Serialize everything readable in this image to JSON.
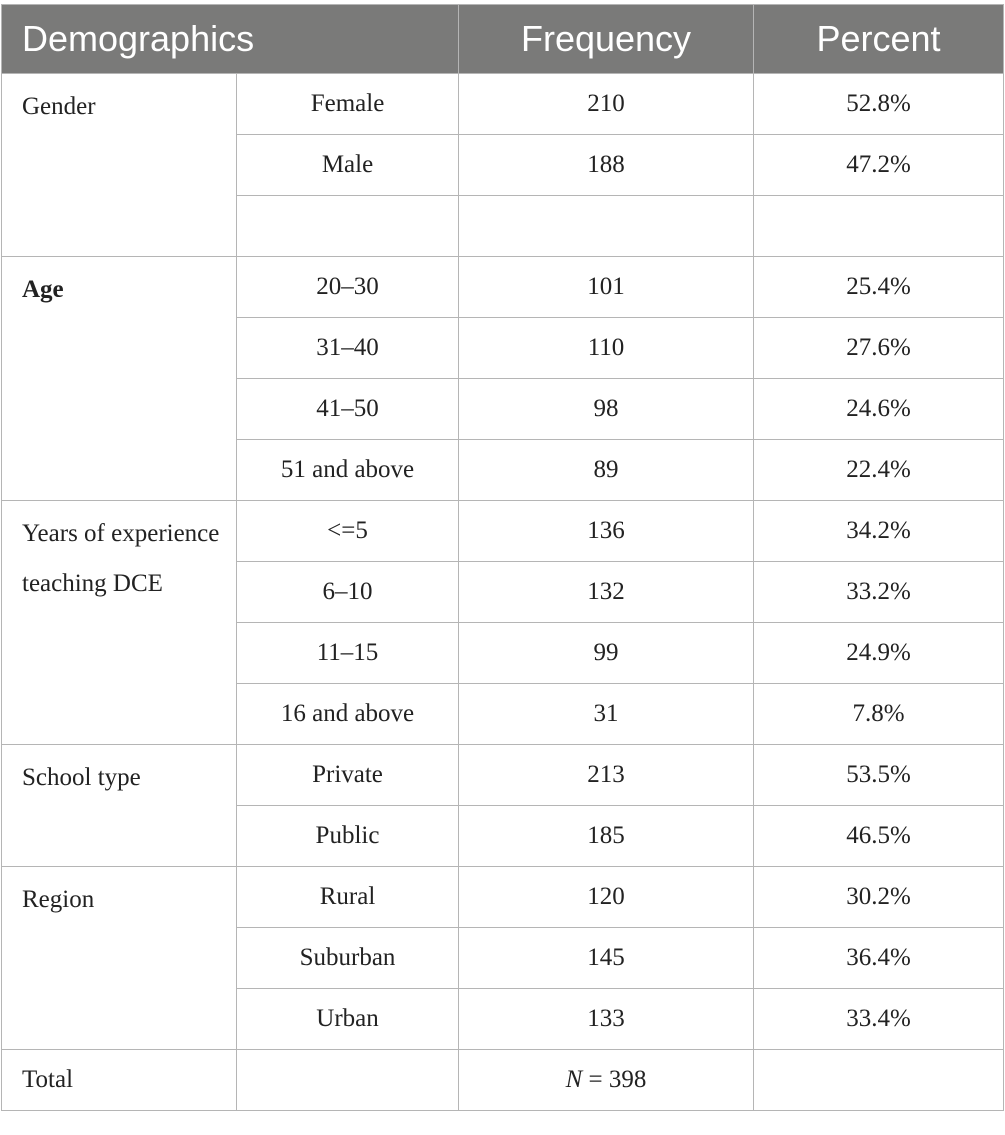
{
  "table": {
    "headers": [
      "Demographics",
      "Frequency",
      "Percent"
    ],
    "groups": [
      {
        "label": "Gender",
        "bold": false,
        "rows": [
          {
            "category": "Female",
            "frequency": "210",
            "percent": "52.8%"
          },
          {
            "category": "Male",
            "frequency": "188",
            "percent": "47.2%"
          },
          {
            "category": "",
            "frequency": "",
            "percent": ""
          }
        ]
      },
      {
        "label": "Age",
        "bold": true,
        "rows": [
          {
            "category": "20–30",
            "frequency": "101",
            "percent": "25.4%"
          },
          {
            "category": "31–40",
            "frequency": "110",
            "percent": "27.6%"
          },
          {
            "category": "41–50",
            "frequency": "98",
            "percent": "24.6%"
          },
          {
            "category": "51 and above",
            "frequency": "89",
            "percent": "22.4%"
          }
        ]
      },
      {
        "label": "Years of experience teaching DCE",
        "bold": false,
        "rows": [
          {
            "category": "<=5",
            "frequency": "136",
            "percent": "34.2%"
          },
          {
            "category": "6–10",
            "frequency": "132",
            "percent": "33.2%"
          },
          {
            "category": "11–15",
            "frequency": "99",
            "percent": "24.9%"
          },
          {
            "category": "16 and above",
            "frequency": "31",
            "percent": "7.8%"
          }
        ]
      },
      {
        "label": "School type",
        "bold": false,
        "rows": [
          {
            "category": "Private",
            "frequency": "213",
            "percent": "53.5%"
          },
          {
            "category": "Public",
            "frequency": "185",
            "percent": "46.5%"
          }
        ]
      },
      {
        "label": "Region",
        "bold": false,
        "rows": [
          {
            "category": "Rural",
            "frequency": "120",
            "percent": "30.2%"
          },
          {
            "category": "Suburban",
            "frequency": "145",
            "percent": "36.4%"
          },
          {
            "category": "Urban",
            "frequency": "133",
            "percent": "33.4%"
          }
        ]
      }
    ],
    "total": {
      "label": "Total",
      "n_symbol": "N",
      "n_rest": " = 398"
    }
  }
}
